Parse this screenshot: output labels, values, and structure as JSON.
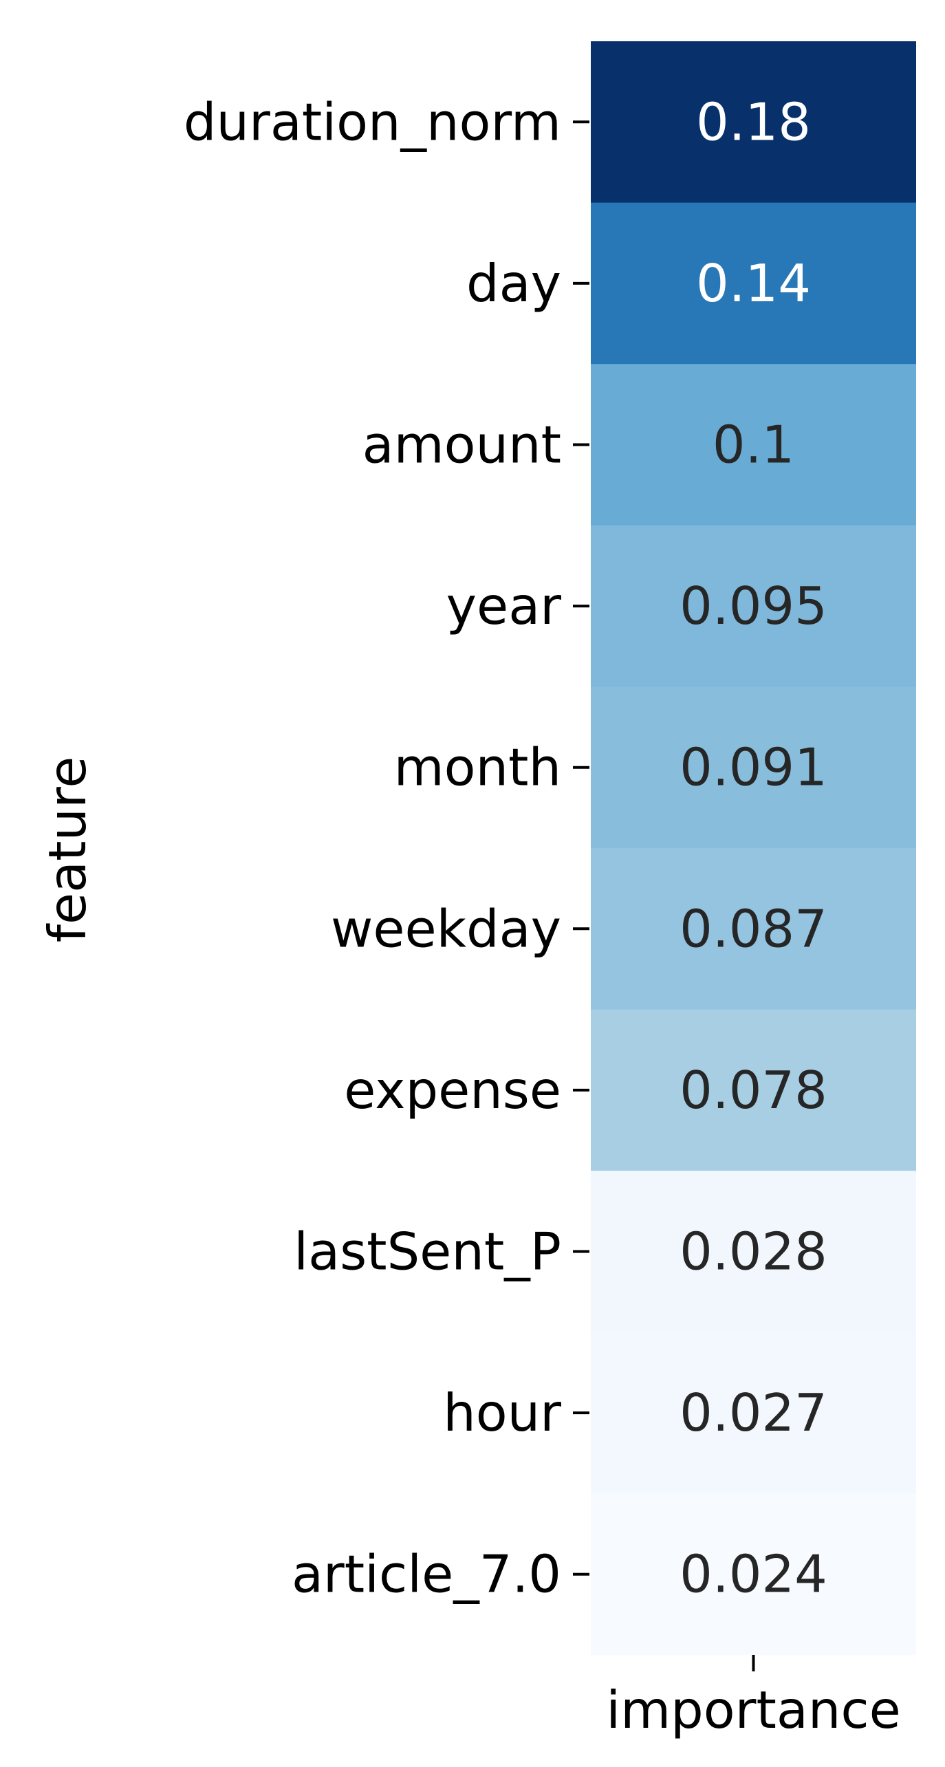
{
  "chart_data": {
    "type": "heatmap",
    "title": "",
    "xlabel": "",
    "ylabel": "feature",
    "columns": [
      "importance"
    ],
    "rows": [
      "duration_norm",
      "day",
      "amount",
      "year",
      "month",
      "weekday",
      "expense",
      "lastSent_P",
      "hour",
      "article_7.0"
    ],
    "values": [
      0.18,
      0.14,
      0.1,
      0.095,
      0.091,
      0.087,
      0.078,
      0.028,
      0.027,
      0.024
    ],
    "value_labels": [
      "0.18",
      "0.14",
      "0.1",
      "0.095",
      "0.091",
      "0.087",
      "0.078",
      "0.028",
      "0.027",
      "0.024"
    ],
    "colormap": "Blues",
    "colorbar": false,
    "grid": false,
    "colors": {
      "cells": [
        "#08306b",
        "#2878b8",
        "#68acd5",
        "#7fb8da",
        "#88bedc",
        "#94c4df",
        "#a8cee4",
        "#f2f7fd",
        "#f3f8fe",
        "#f7fbff"
      ],
      "light_text": "#ffffff",
      "dark_text": "#262626"
    }
  }
}
